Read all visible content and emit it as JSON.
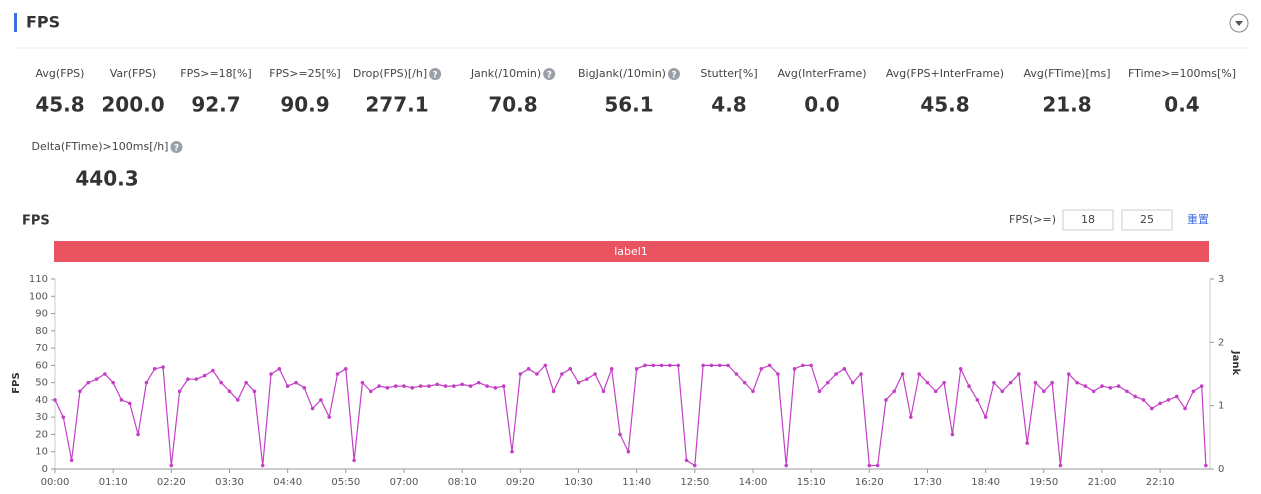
{
  "header": {
    "title": "FPS"
  },
  "metrics": [
    {
      "label": "Avg(FPS)",
      "value": "45.8"
    },
    {
      "label": "Var(FPS)",
      "value": "200.0"
    },
    {
      "label": "FPS>=18[%]",
      "value": "92.7"
    },
    {
      "label": "FPS>=25[%]",
      "value": "90.9"
    },
    {
      "label": "Drop(FPS)[/h]",
      "value": "277.1",
      "help": true
    },
    {
      "label": "Jank(/10min)",
      "value": "70.8",
      "help": true
    },
    {
      "label": "BigJank(/10min)",
      "value": "56.1",
      "help": true
    },
    {
      "label": "Stutter[%]",
      "value": "4.8"
    },
    {
      "label": "Avg(InterFrame)",
      "value": "0.0"
    },
    {
      "label": "Avg(FPS+InterFrame)",
      "value": "45.8"
    },
    {
      "label": "Avg(FTime)[ms]",
      "value": "21.8"
    },
    {
      "label": "FTime>=100ms[%]",
      "value": "0.4"
    },
    {
      "label": "Delta(FTime)>100ms[/h]",
      "value": "440.3",
      "help": true
    }
  ],
  "controls": {
    "label": "FPS(>=)",
    "inputs": [
      "18",
      "25"
    ],
    "reset": "重置"
  },
  "chart_data": {
    "type": "line",
    "title": "FPS",
    "band_label": "label1",
    "band_color": "#ea5461",
    "ylabel": "FPS",
    "y2label": "Jank",
    "xlim": [
      0,
      1390
    ],
    "xticks": [
      {
        "value": 0,
        "label": "00:00"
      },
      {
        "value": 70,
        "label": "01:10"
      },
      {
        "value": 140,
        "label": "02:20"
      },
      {
        "value": 210,
        "label": "03:30"
      },
      {
        "value": 280,
        "label": "04:40"
      },
      {
        "value": 350,
        "label": "05:50"
      },
      {
        "value": 420,
        "label": "07:00"
      },
      {
        "value": 490,
        "label": "08:10"
      },
      {
        "value": 560,
        "label": "09:20"
      },
      {
        "value": 630,
        "label": "10:30"
      },
      {
        "value": 700,
        "label": "11:40"
      },
      {
        "value": 770,
        "label": "12:50"
      },
      {
        "value": 840,
        "label": "14:00"
      },
      {
        "value": 910,
        "label": "15:10"
      },
      {
        "value": 980,
        "label": "16:20"
      },
      {
        "value": 1050,
        "label": "17:30"
      },
      {
        "value": 1120,
        "label": "18:40"
      },
      {
        "value": 1190,
        "label": "19:50"
      },
      {
        "value": 1260,
        "label": "21:00"
      },
      {
        "value": 1330,
        "label": "22:10"
      }
    ],
    "ylim": [
      0,
      110
    ],
    "yticks": [
      0,
      10,
      20,
      30,
      40,
      50,
      60,
      70,
      80,
      90,
      100,
      110
    ],
    "y2lim": [
      0,
      3
    ],
    "y2ticks": [
      0,
      1,
      2,
      3
    ],
    "grid": false,
    "x": [
      0,
      10,
      20,
      30,
      40,
      50,
      60,
      70,
      80,
      90,
      100,
      110,
      120,
      130,
      140,
      150,
      160,
      170,
      180,
      190,
      200,
      210,
      220,
      230,
      240,
      250,
      260,
      270,
      280,
      290,
      300,
      310,
      320,
      330,
      340,
      350,
      360,
      370,
      380,
      390,
      400,
      410,
      420,
      430,
      440,
      450,
      460,
      470,
      480,
      490,
      500,
      510,
      520,
      530,
      540,
      550,
      560,
      570,
      580,
      590,
      600,
      610,
      620,
      630,
      640,
      650,
      660,
      670,
      680,
      690,
      700,
      710,
      720,
      730,
      740,
      750,
      760,
      770,
      780,
      790,
      800,
      810,
      820,
      830,
      840,
      850,
      860,
      870,
      880,
      890,
      900,
      910,
      920,
      930,
      940,
      950,
      960,
      970,
      980,
      990,
      1000,
      1010,
      1020,
      1030,
      1040,
      1050,
      1060,
      1070,
      1080,
      1090,
      1100,
      1110,
      1120,
      1130,
      1140,
      1150,
      1160,
      1170,
      1180,
      1190,
      1200,
      1210,
      1220,
      1230,
      1240,
      1250,
      1260,
      1270,
      1280,
      1290,
      1300,
      1310,
      1320,
      1330,
      1340,
      1350,
      1360,
      1370,
      1380,
      1385
    ],
    "series": [
      {
        "color": "#c340c6",
        "values": [
          40,
          30,
          5,
          45,
          50,
          52,
          55,
          50,
          40,
          38,
          20,
          50,
          58,
          59,
          2,
          45,
          52,
          52,
          54,
          57,
          50,
          45,
          40,
          50,
          45,
          2,
          55,
          58,
          48,
          50,
          47,
          35,
          40,
          30,
          55,
          58,
          5,
          50,
          45,
          48,
          47,
          48,
          48,
          47,
          48,
          48,
          49,
          48,
          48,
          49,
          48,
          50,
          48,
          47,
          48,
          10,
          55,
          58,
          55,
          60,
          45,
          55,
          58,
          50,
          52,
          55,
          45,
          58,
          20,
          10,
          58,
          60,
          60,
          60,
          60,
          60,
          5,
          2,
          60,
          60,
          60,
          60,
          55,
          50,
          45,
          58,
          60,
          55,
          2,
          58,
          60,
          60,
          45,
          50,
          55,
          58,
          50,
          55,
          2,
          2,
          40,
          45,
          55,
          30,
          55,
          50,
          45,
          50,
          20,
          58,
          48,
          40,
          30,
          50,
          45,
          50,
          55,
          15,
          50,
          45,
          50,
          2,
          55,
          50,
          48,
          45,
          48,
          47,
          48,
          45,
          42,
          40,
          35,
          38,
          40,
          42,
          35,
          45,
          48,
          2
        ]
      }
    ]
  }
}
